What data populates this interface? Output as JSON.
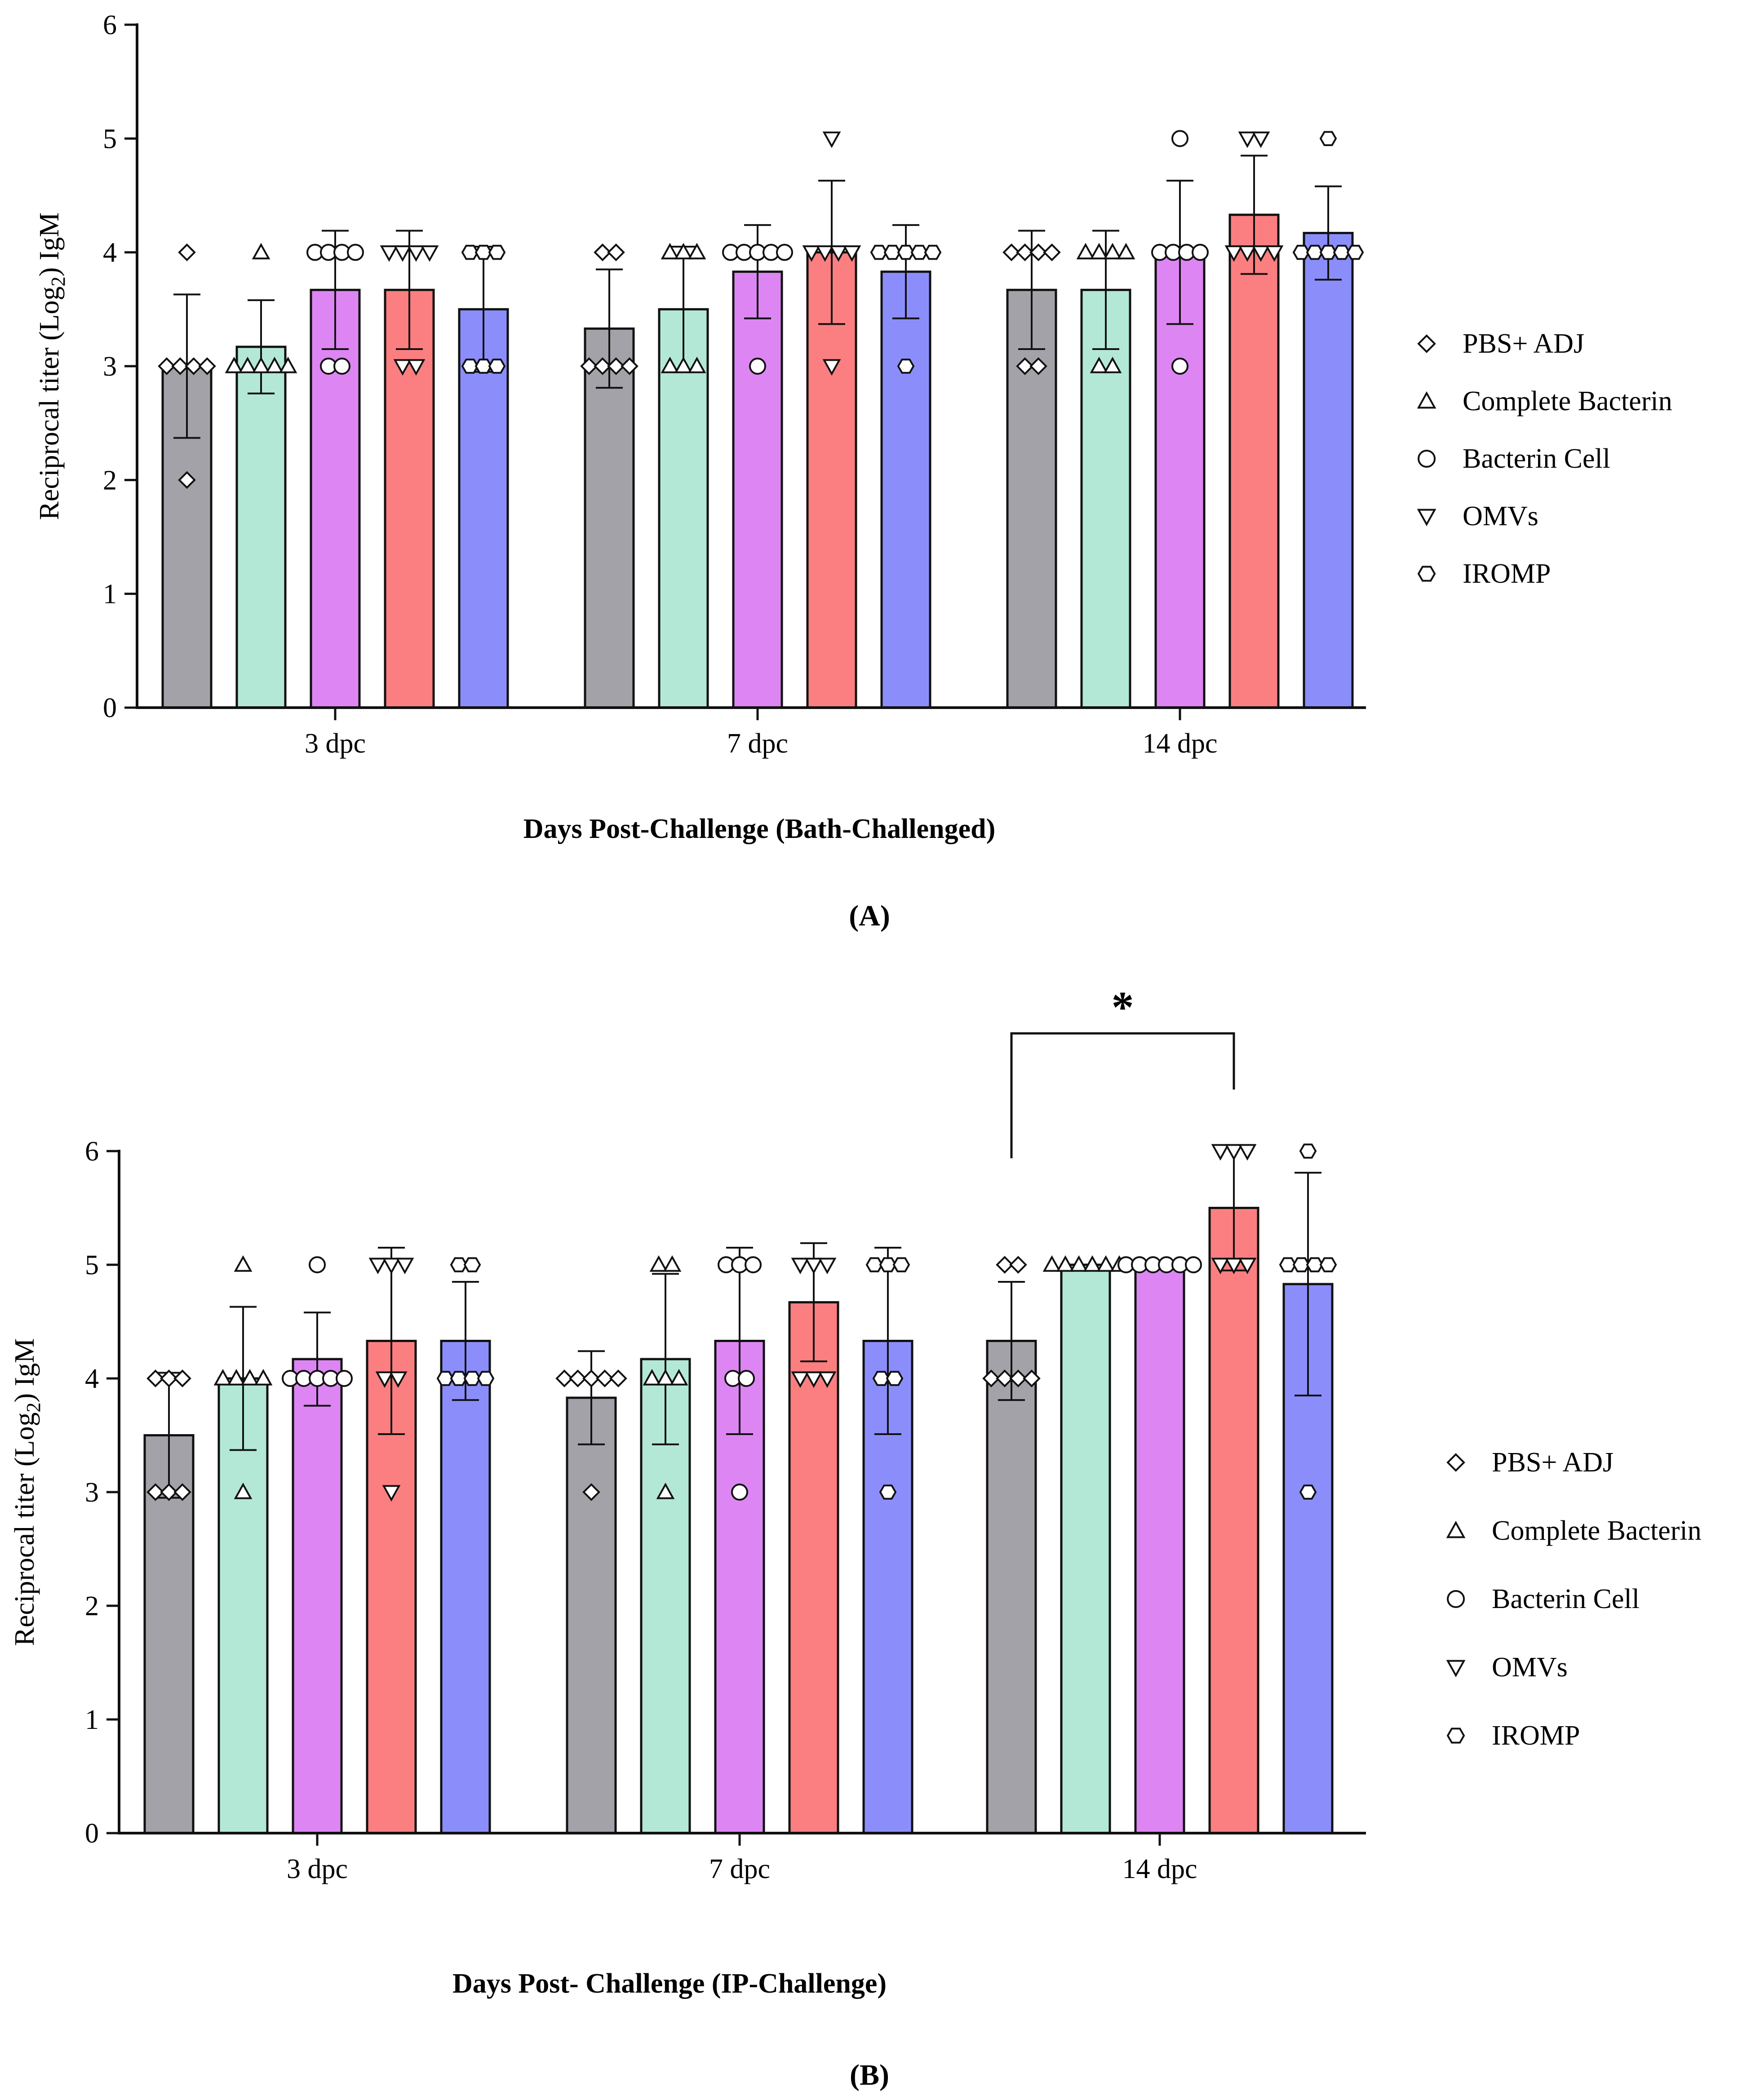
{
  "chart_data": [
    {
      "type": "bar",
      "panel_label": "(A)",
      "xlabel": "Days Post-Challenge (Bath-Challenged)",
      "ylabel": {
        "pre": "Reciprocal titer (Log",
        "sub": "2",
        "post": ") IgM"
      },
      "ylim": [
        0,
        6
      ],
      "yticks": [
        "0",
        "1",
        "2",
        "3",
        "4",
        "5",
        "6"
      ],
      "categories": [
        "3 dpc",
        "7 dpc",
        "14 dpc"
      ],
      "series": [
        {
          "name": "PBS+ ADJ",
          "color": "#a3a2a8",
          "marker": "diamond",
          "values": [
            3.0,
            3.33,
            3.67
          ],
          "sd": [
            0.63,
            0.52,
            0.52
          ],
          "points": [
            [
              4,
              3,
              3,
              3,
              3,
              2
            ],
            [
              4,
              4,
              3,
              3,
              3,
              3
            ],
            [
              4,
              4,
              4,
              4,
              3,
              3
            ]
          ]
        },
        {
          "name": "Complete Bacterin",
          "color": "#b3e8d7",
          "marker": "triangle-up",
          "values": [
            3.17,
            3.5,
            3.67
          ],
          "sd": [
            0.41,
            0.55,
            0.52
          ],
          "points": [
            [
              4,
              3,
              3,
              3,
              3,
              3
            ],
            [
              4,
              4,
              4,
              3,
              3,
              3
            ],
            [
              4,
              4,
              4,
              4,
              3,
              3
            ]
          ]
        },
        {
          "name": "Bacterin Cell",
          "color": "#dd86f3",
          "marker": "circle",
          "values": [
            3.67,
            3.83,
            4.0
          ],
          "sd": [
            0.52,
            0.41,
            0.63
          ],
          "points": [
            [
              4,
              4,
              4,
              4,
              3,
              3
            ],
            [
              4,
              4,
              4,
              4,
              4,
              3
            ],
            [
              5,
              4,
              4,
              4,
              4,
              3
            ]
          ]
        },
        {
          "name": "OMVs",
          "color": "#fb7f80",
          "marker": "triangle-down",
          "values": [
            3.67,
            4.0,
            4.33
          ],
          "sd": [
            0.52,
            0.63,
            0.52
          ],
          "points": [
            [
              4,
              4,
              4,
              4,
              3,
              3
            ],
            [
              5,
              4,
              4,
              4,
              4,
              3
            ],
            [
              5,
              5,
              4,
              4,
              4,
              4
            ]
          ]
        },
        {
          "name": "IROMP",
          "color": "#8b8efa",
          "marker": "hexagon",
          "values": [
            3.5,
            3.83,
            4.17
          ],
          "sd": [
            0.55,
            0.41,
            0.41
          ],
          "points": [
            [
              4,
              4,
              4,
              3,
              3,
              3
            ],
            [
              4,
              4,
              4,
              4,
              4,
              3
            ],
            [
              5,
              4,
              4,
              4,
              4,
              4
            ]
          ]
        }
      ],
      "legend": [
        "PBS+ ADJ",
        "Complete Bacterin",
        "Bacterin Cell",
        "OMVs",
        "IROMP"
      ]
    },
    {
      "type": "bar",
      "panel_label": "(B)",
      "xlabel": "Days Post- Challenge (IP-Challenge)",
      "ylabel": {
        "pre": "Reciprocal titer (Log",
        "sub": "2",
        "post": ") IgM"
      },
      "ylim": [
        0,
        6
      ],
      "yticks": [
        "0",
        "1",
        "2",
        "3",
        "4",
        "5",
        "6"
      ],
      "categories": [
        "3 dpc",
        "7 dpc",
        "14 dpc"
      ],
      "series": [
        {
          "name": "PBS+ ADJ",
          "color": "#a3a2a8",
          "marker": "diamond",
          "values": [
            3.5,
            3.83,
            4.33
          ],
          "sd": [
            0.55,
            0.41,
            0.52
          ],
          "points": [
            [
              4,
              4,
              4,
              3,
              3,
              3
            ],
            [
              4,
              4,
              4,
              4,
              4,
              3
            ],
            [
              5,
              5,
              4,
              4,
              4,
              4
            ]
          ]
        },
        {
          "name": "Complete Bacterin",
          "color": "#b3e8d7",
          "marker": "triangle-up",
          "values": [
            4.0,
            4.17,
            5.0
          ],
          "sd": [
            0.63,
            0.75,
            0.0
          ],
          "points": [
            [
              5,
              4,
              4,
              4,
              4,
              3
            ],
            [
              5,
              5,
              4,
              4,
              4,
              3
            ],
            [
              5,
              5,
              5,
              5,
              5,
              5
            ]
          ]
        },
        {
          "name": "Bacterin Cell",
          "color": "#dd86f3",
          "marker": "circle",
          "values": [
            4.17,
            4.33,
            5.0
          ],
          "sd": [
            0.41,
            0.82,
            0.0
          ],
          "points": [
            [
              5,
              4,
              4,
              4,
              4,
              4
            ],
            [
              5,
              5,
              5,
              4,
              4,
              3
            ],
            [
              5,
              5,
              5,
              5,
              5,
              5
            ]
          ]
        },
        {
          "name": "OMVs",
          "color": "#fb7f80",
          "marker": "triangle-down",
          "values": [
            4.33,
            4.67,
            5.5
          ],
          "sd": [
            0.82,
            0.52,
            0.55
          ],
          "points": [
            [
              5,
              5,
              5,
              4,
              4,
              3
            ],
            [
              5,
              5,
              5,
              4,
              4,
              4
            ],
            [
              6,
              6,
              6,
              5,
              5,
              5
            ]
          ]
        },
        {
          "name": "IROMP",
          "color": "#8b8efa",
          "marker": "hexagon",
          "values": [
            4.33,
            4.33,
            4.83
          ],
          "sd": [
            0.52,
            0.82,
            0.98
          ],
          "points": [
            [
              5,
              5,
              4,
              4,
              4,
              4
            ],
            [
              5,
              5,
              5,
              4,
              4,
              3
            ],
            [
              6,
              5,
              5,
              5,
              5,
              3
            ]
          ]
        }
      ],
      "legend": [
        "PBS+ ADJ",
        "Complete Bacterin",
        "Bacterin Cell",
        "OMVs",
        "IROMP"
      ],
      "annotation": {
        "text": "*",
        "from": {
          "category": "14 dpc",
          "series": "PBS+ ADJ"
        },
        "to": {
          "category": "14 dpc",
          "series": "OMVs"
        }
      }
    }
  ]
}
